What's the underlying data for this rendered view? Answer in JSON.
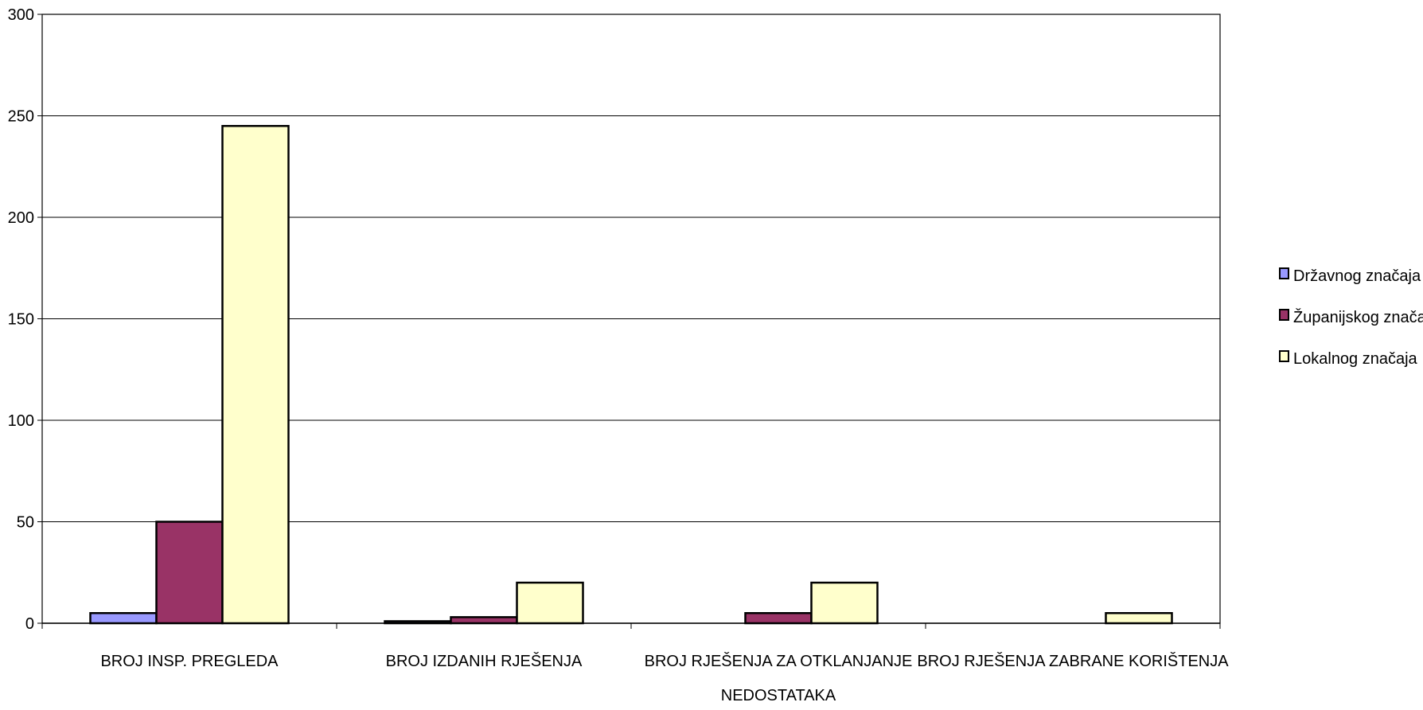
{
  "chart_data": {
    "type": "bar",
    "title": "",
    "xlabel": "",
    "ylabel": "",
    "ylim": [
      0,
      300
    ],
    "yticks": [
      0,
      50,
      100,
      150,
      200,
      250,
      300
    ],
    "grid": true,
    "legend_position": "right",
    "categories": [
      [
        "BROJ INSP. PREGLEDA"
      ],
      [
        "BROJ IZDANIH RJEŠENJA"
      ],
      [
        "BROJ RJEŠENJA ZA OTKLANJANJE",
        "NEDOSTATAKA"
      ],
      [
        "BROJ RJEŠENJA ZABRANE KORIŠTENJA"
      ]
    ],
    "series": [
      {
        "name": "Državnog značaja",
        "color": "#9999FF",
        "values": [
          5,
          1,
          0,
          0
        ]
      },
      {
        "name": "Županijskog značaja",
        "color": "#993366",
        "values": [
          50,
          3,
          5,
          0
        ]
      },
      {
        "name": "Lokalnog značaja",
        "color": "#FFFFCC",
        "values": [
          245,
          20,
          20,
          5
        ]
      }
    ]
  }
}
